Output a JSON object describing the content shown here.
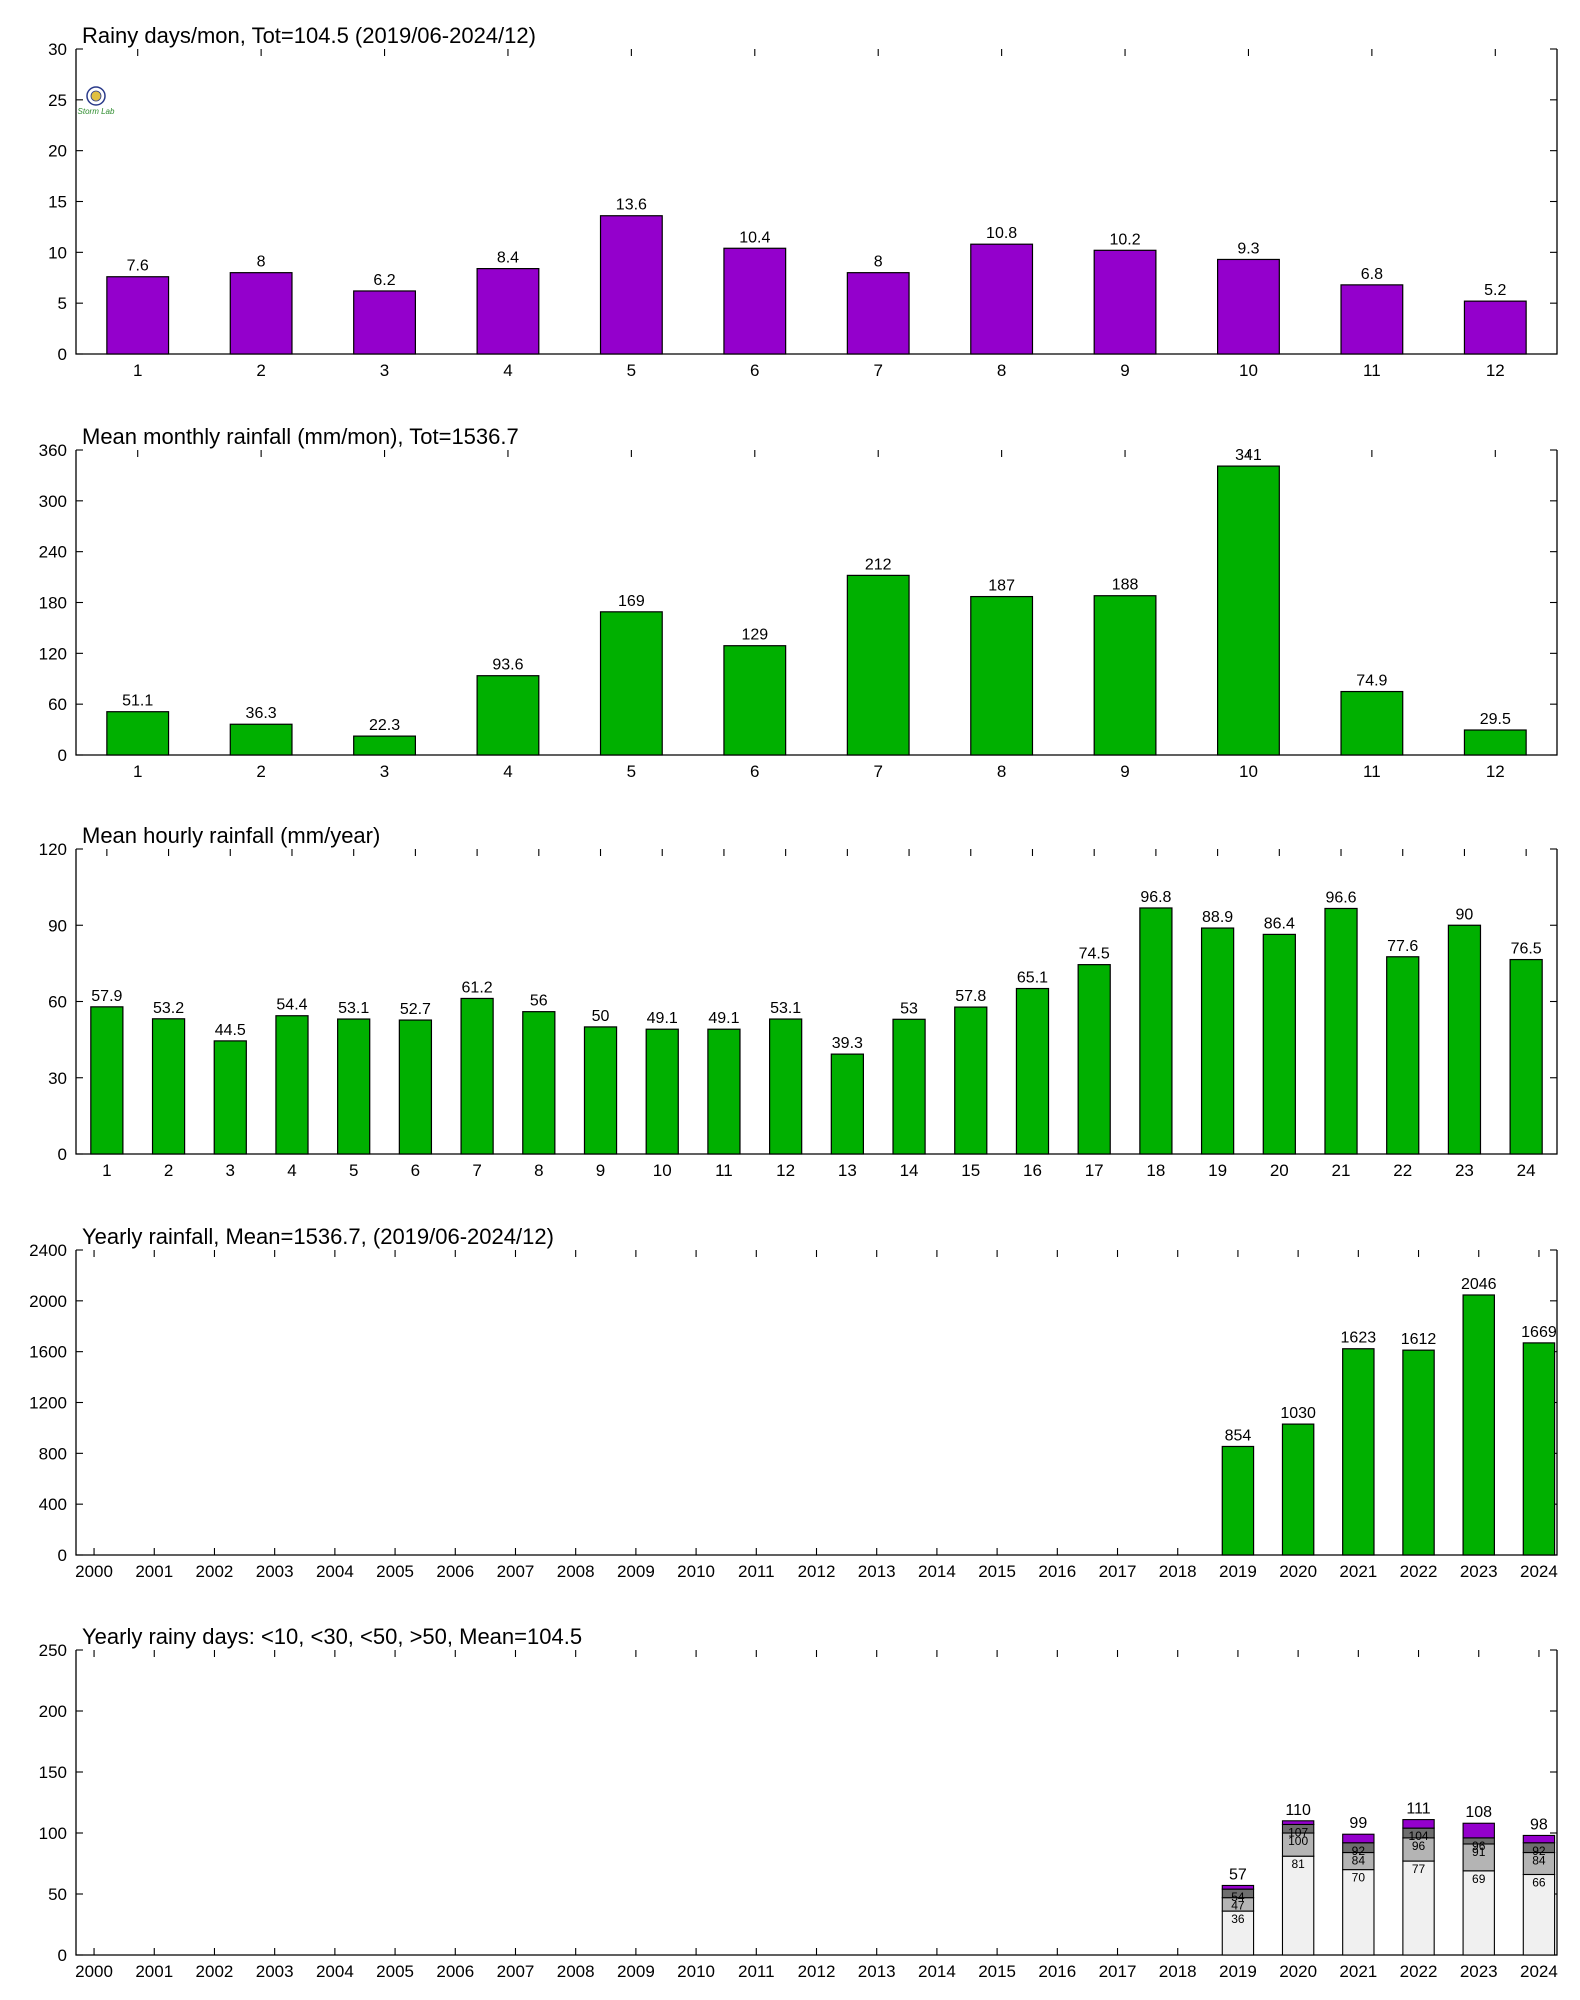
{
  "colors": {
    "purple": "#9400cc",
    "green": "#00b000",
    "stack_lt10": "#f0f0f0",
    "stack_lt30": "#b4b4b4",
    "stack_lt50": "#6e6e6e",
    "stack_gt50": "#9400cc"
  },
  "logo_text": "Storm Lab",
  "chart_data": [
    {
      "type": "bar",
      "title": "Rainy days/mon, Tot=104.5 (2019/06-2024/12)",
      "categories": [
        "1",
        "2",
        "3",
        "4",
        "5",
        "6",
        "7",
        "8",
        "9",
        "10",
        "11",
        "12"
      ],
      "values": [
        7.6,
        8,
        6.2,
        8.4,
        13.6,
        10.4,
        8,
        10.8,
        10.2,
        9.3,
        6.8,
        5.2
      ],
      "labels": [
        "7.6",
        "8",
        "6.2",
        "8.4",
        "13.6",
        "10.4",
        "8",
        "10.8",
        "10.2",
        "9.3",
        "6.8",
        "5.2"
      ],
      "ylim": [
        0,
        30
      ],
      "yticks": [
        "0",
        "5",
        "10",
        "15",
        "20",
        "25",
        "30"
      ],
      "color": "#9400cc"
    },
    {
      "type": "bar",
      "title": "Mean monthly rainfall (mm/mon), Tot=1536.7",
      "categories": [
        "1",
        "2",
        "3",
        "4",
        "5",
        "6",
        "7",
        "8",
        "9",
        "10",
        "11",
        "12"
      ],
      "values": [
        51.1,
        36.3,
        22.3,
        93.6,
        169,
        129,
        212,
        187,
        188,
        341,
        74.9,
        29.5
      ],
      "labels": [
        "51.1",
        "36.3",
        "22.3",
        "93.6",
        "169",
        "129",
        "212",
        "187",
        "188",
        "341",
        "74.9",
        "29.5"
      ],
      "ylim": [
        0,
        360
      ],
      "yticks": [
        "0",
        "60",
        "120",
        "180",
        "240",
        "300",
        "360"
      ],
      "color": "#00b000"
    },
    {
      "type": "bar",
      "title": "Mean hourly rainfall (mm/year)",
      "categories": [
        "1",
        "2",
        "3",
        "4",
        "5",
        "6",
        "7",
        "8",
        "9",
        "10",
        "11",
        "12",
        "13",
        "14",
        "15",
        "16",
        "17",
        "18",
        "19",
        "20",
        "21",
        "22",
        "23",
        "24"
      ],
      "values": [
        57.9,
        53.2,
        44.5,
        54.4,
        53.1,
        52.7,
        61.2,
        56,
        50,
        49.1,
        49.1,
        53.1,
        39.3,
        53,
        57.8,
        65.1,
        74.5,
        96.8,
        88.9,
        86.4,
        96.6,
        77.6,
        90,
        76.5
      ],
      "labels": [
        "57.9",
        "53.2",
        "44.5",
        "54.4",
        "53.1",
        "52.7",
        "61.2",
        "56",
        "50",
        "49.1",
        "49.1",
        "53.1",
        "39.3",
        "53",
        "57.8",
        "65.1",
        "74.5",
        "96.8",
        "88.9",
        "86.4",
        "96.6",
        "77.6",
        "90",
        "76.5"
      ],
      "ylim": [
        0,
        120
      ],
      "yticks": [
        "0",
        "30",
        "60",
        "90",
        "120"
      ],
      "color": "#00b000"
    },
    {
      "type": "bar",
      "title": "Yearly rainfall, Mean=1536.7, (2019/06-2024/12)",
      "categories": [
        "2000",
        "2001",
        "2002",
        "2003",
        "2004",
        "2005",
        "2006",
        "2007",
        "2008",
        "2009",
        "2010",
        "2011",
        "2012",
        "2013",
        "2014",
        "2015",
        "2016",
        "2017",
        "2018",
        "2019",
        "2020",
        "2021",
        "2022",
        "2023",
        "2024"
      ],
      "values": [
        null,
        null,
        null,
        null,
        null,
        null,
        null,
        null,
        null,
        null,
        null,
        null,
        null,
        null,
        null,
        null,
        null,
        null,
        null,
        854,
        1030,
        1623,
        1612,
        2046,
        1669
      ],
      "labels": [
        "",
        "",
        "",
        "",
        "",
        "",
        "",
        "",
        "",
        "",
        "",
        "",
        "",
        "",
        "",
        "",
        "",
        "",
        "",
        "854",
        "1030",
        "1623",
        "1612",
        "2046",
        "1669"
      ],
      "ylim": [
        0,
        2400
      ],
      "yticks": [
        "0",
        "400",
        "800",
        "1200",
        "1600",
        "2000",
        "2400"
      ],
      "color": "#00b000"
    },
    {
      "type": "bar",
      "stacked": true,
      "title": "Yearly rainy days: <10, <30, <50, >50, Mean=104.5",
      "categories": [
        "2000",
        "2001",
        "2002",
        "2003",
        "2004",
        "2005",
        "2006",
        "2007",
        "2008",
        "2009",
        "2010",
        "2011",
        "2012",
        "2013",
        "2014",
        "2015",
        "2016",
        "2017",
        "2018",
        "2019",
        "2020",
        "2021",
        "2022",
        "2023",
        "2024"
      ],
      "cumulative": [
        null,
        null,
        null,
        null,
        null,
        null,
        null,
        null,
        null,
        null,
        null,
        null,
        null,
        null,
        null,
        null,
        null,
        null,
        null,
        [
          36,
          47,
          54,
          57
        ],
        [
          81,
          100,
          107,
          110
        ],
        [
          70,
          84,
          92,
          99
        ],
        [
          77,
          96,
          104,
          111
        ],
        [
          69,
          91,
          96,
          108
        ],
        [
          66,
          84,
          92,
          98
        ]
      ],
      "segment_labels": [
        null,
        null,
        null,
        null,
        null,
        null,
        null,
        null,
        null,
        null,
        null,
        null,
        null,
        null,
        null,
        null,
        null,
        null,
        null,
        [
          "36",
          "47",
          "54",
          "57"
        ],
        [
          "81",
          "100",
          "107",
          "110"
        ],
        [
          "70",
          "84",
          "92",
          "99"
        ],
        [
          "77",
          "96",
          "104",
          "111"
        ],
        [
          "69",
          "91",
          "96",
          "108"
        ],
        [
          "66",
          "84",
          "92",
          "98"
        ]
      ],
      "ylim": [
        0,
        250
      ],
      "yticks": [
        "0",
        "50",
        "100",
        "150",
        "200",
        "250"
      ]
    }
  ]
}
